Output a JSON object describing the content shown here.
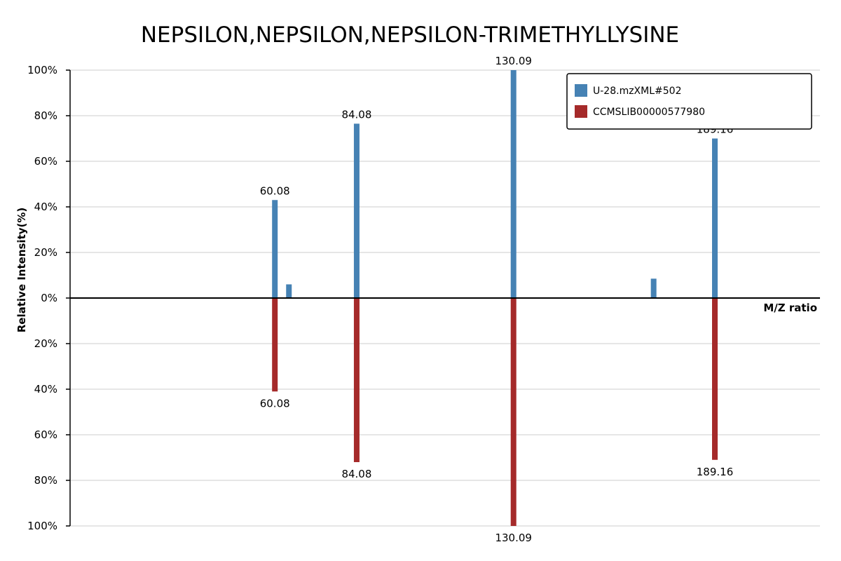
{
  "chart_data": {
    "type": "bar",
    "title": "NEPSILON,NEPSILON,NEPSILON-TRIMETHYLLYSINE",
    "xlabel": "M/Z ratio",
    "ylabel": "Relative Intensity(%)",
    "xlim": [
      0,
      220
    ],
    "ylim": [
      -100,
      100
    ],
    "y_ticks": [
      {
        "value": 100,
        "label": "100%"
      },
      {
        "value": 80,
        "label": "80%"
      },
      {
        "value": 60,
        "label": "60%"
      },
      {
        "value": 40,
        "label": "40%"
      },
      {
        "value": 20,
        "label": "20%"
      },
      {
        "value": 0,
        "label": "0%"
      },
      {
        "value": -20,
        "label": "20%"
      },
      {
        "value": -40,
        "label": "40%"
      },
      {
        "value": -60,
        "label": "60%"
      },
      {
        "value": -80,
        "label": "80%"
      },
      {
        "value": -100,
        "label": "100%"
      }
    ],
    "grid": true,
    "legend_position": "top-right",
    "series": [
      {
        "name": "U-28.mzXML#502",
        "color": "#4682b4",
        "direction": "up",
        "peaks": [
          {
            "mz": 60.08,
            "intensity": 43,
            "label": "60.08"
          },
          {
            "mz": 64.2,
            "intensity": 6,
            "label": ""
          },
          {
            "mz": 84.08,
            "intensity": 76.5,
            "label": "84.08"
          },
          {
            "mz": 130.09,
            "intensity": 100,
            "label": "130.09"
          },
          {
            "mz": 171.2,
            "intensity": 8.5,
            "label": ""
          },
          {
            "mz": 189.16,
            "intensity": 70,
            "label": "189.16"
          }
        ]
      },
      {
        "name": "CCMSLIB00000577980",
        "color": "#a52a2a",
        "direction": "down",
        "peaks": [
          {
            "mz": 60.08,
            "intensity": 41,
            "label": "60.08"
          },
          {
            "mz": 84.08,
            "intensity": 72,
            "label": "84.08"
          },
          {
            "mz": 130.09,
            "intensity": 100,
            "label": "130.09"
          },
          {
            "mz": 189.16,
            "intensity": 71,
            "label": "189.16"
          }
        ]
      }
    ]
  }
}
